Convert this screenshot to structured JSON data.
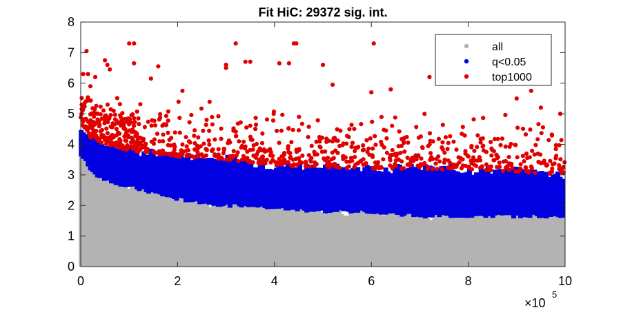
{
  "chart_data": {
    "type": "scatter",
    "title": "Fit HiC: 29372 sig. int.",
    "xlabel": "",
    "ylabel": "",
    "x_exponent_label": "×10",
    "x_exponent_power": "5",
    "xlim": [
      0,
      10
    ],
    "ylim": [
      0,
      8
    ],
    "xticks": [
      "0",
      "2",
      "4",
      "6",
      "8",
      "10"
    ],
    "yticks": [
      "0",
      "1",
      "2",
      "3",
      "4",
      "5",
      "6",
      "7",
      "8"
    ],
    "grid": false,
    "legend_position": "top-right",
    "series": [
      {
        "name": "all",
        "color": "#b3b3b3",
        "description_band": {
          "x_range": [
            0,
            10
          ],
          "y_low": 0,
          "y_high_profile": [
            [
              0,
              3.6
            ],
            [
              0.3,
              3.0
            ],
            [
              0.6,
              2.8
            ],
            [
              1.0,
              2.6
            ],
            [
              1.5,
              2.4
            ],
            [
              2.0,
              2.2
            ],
            [
              2.5,
              2.1
            ],
            [
              3.0,
              2.0
            ],
            [
              3.5,
              2.0
            ],
            [
              4.0,
              1.9
            ],
            [
              5.0,
              1.8
            ],
            [
              6.0,
              1.8
            ],
            [
              7.0,
              1.65
            ],
            [
              8.0,
              1.65
            ],
            [
              10.0,
              1.65
            ]
          ]
        }
      },
      {
        "name": "q<0.05",
        "color": "#0000e0",
        "description_band": {
          "x_range": [
            0,
            10
          ],
          "y_high_profile": [
            [
              0,
              4.6
            ],
            [
              0.2,
              4.2
            ],
            [
              0.5,
              4.0
            ],
            [
              1.0,
              3.8
            ],
            [
              1.5,
              3.7
            ],
            [
              2.0,
              3.6
            ],
            [
              3.0,
              3.5
            ],
            [
              4.0,
              3.3
            ],
            [
              5.0,
              3.25
            ],
            [
              6.0,
              3.2
            ],
            [
              7.0,
              3.2
            ],
            [
              8.0,
              3.15
            ],
            [
              9.0,
              3.1
            ],
            [
              10.0,
              3.0
            ]
          ]
        }
      },
      {
        "name": "top1000",
        "color": "#e00000",
        "highlight_points": [
          [
            0.05,
            6.3
          ],
          [
            0.12,
            7.05
          ],
          [
            0.15,
            6.3
          ],
          [
            0.2,
            5.9
          ],
          [
            0.3,
            6.2
          ],
          [
            0.5,
            6.75
          ],
          [
            0.55,
            6.6
          ],
          [
            0.6,
            6.45
          ],
          [
            1.0,
            7.3
          ],
          [
            1.1,
            7.3
          ],
          [
            1.1,
            6.65
          ],
          [
            1.45,
            6.15
          ],
          [
            1.6,
            6.55
          ],
          [
            2.1,
            5.75
          ],
          [
            3.0,
            6.6
          ],
          [
            3.0,
            6.5
          ],
          [
            3.2,
            7.3
          ],
          [
            3.4,
            6.7
          ],
          [
            3.5,
            6.7
          ],
          [
            4.1,
            6.65
          ],
          [
            4.3,
            6.65
          ],
          [
            4.4,
            7.3
          ],
          [
            4.45,
            7.3
          ],
          [
            5.0,
            6.6
          ],
          [
            5.2,
            5.95
          ],
          [
            6.05,
            7.3
          ],
          [
            6.4,
            5.8
          ],
          [
            6.0,
            5.7
          ],
          [
            7.2,
            6.2
          ],
          [
            8.5,
            6.0
          ],
          [
            9.0,
            5.5
          ],
          [
            9.3,
            5.75
          ],
          [
            9.5,
            5.2
          ],
          [
            9.9,
            5.0
          ]
        ]
      }
    ]
  }
}
